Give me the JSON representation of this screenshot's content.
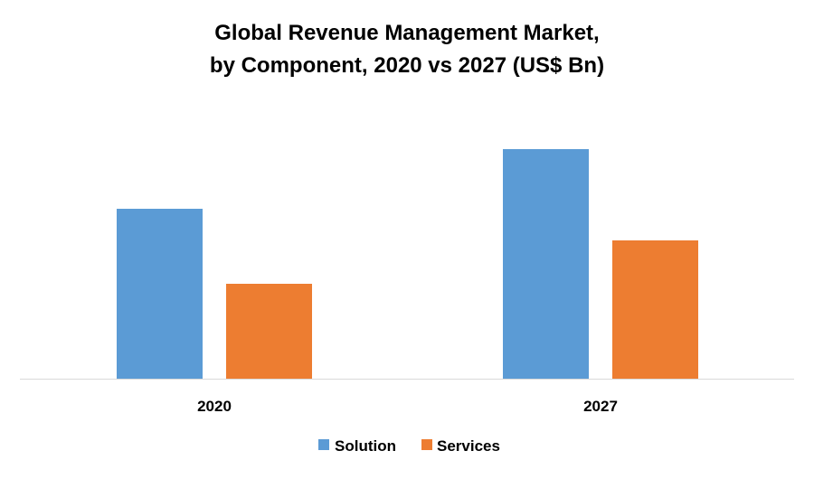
{
  "chart_data": {
    "type": "bar",
    "title_lines": [
      "Global Revenue Management Market,",
      "by Component, 2020 vs 2027 (US$ Bn)"
    ],
    "categories": [
      "2020",
      "2027"
    ],
    "series": [
      {
        "name": "Solution",
        "values": [
          18.8,
          25.4
        ],
        "color": "#5b9bd5"
      },
      {
        "name": "Services",
        "values": [
          10.5,
          15.3
        ],
        "color": "#ed7d31"
      }
    ],
    "xlabel": "",
    "ylabel": "",
    "ylim": [
      0,
      28
    ],
    "y_axis_visible": false,
    "grid": false,
    "legend_placement": "bottom"
  }
}
